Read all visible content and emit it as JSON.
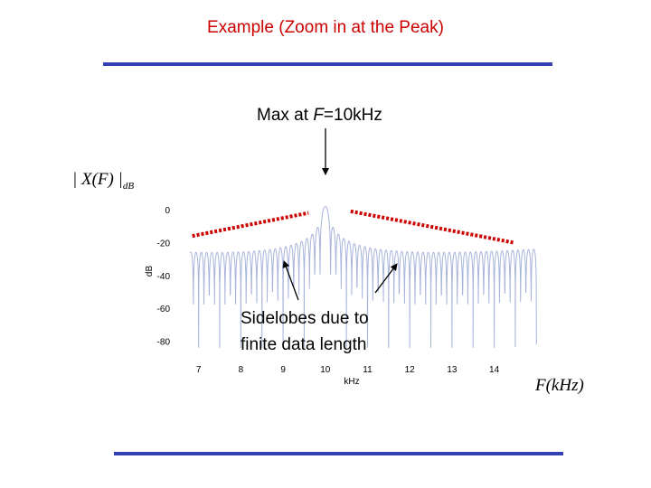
{
  "slide": {
    "title": "Example (Zoom in at the Peak)",
    "max_annotation_prefix": "Max at ",
    "max_annotation_var": "F",
    "max_annotation_suffix": "=10kHz",
    "sidelobe_line1": "Sidelobes due to",
    "sidelobe_line2": "finite data length",
    "ylabel_math": "| X(F) |",
    "ylabel_math_sub": "dB",
    "xlabel_math_var": "F",
    "xlabel_math_unit": "(kHz)"
  },
  "colors": {
    "title": "#cc0000",
    "rule": "#3341b3",
    "spectrum": "#a8b4dc",
    "envelope": "#cc0000"
  },
  "chart_data": {
    "type": "line",
    "xlabel": "kHz",
    "ylabel": "dB",
    "xlim": [
      6.6,
      15.0
    ],
    "ylim": [
      -90,
      8
    ],
    "x_ticks": [
      7,
      8,
      9,
      10,
      11,
      12,
      13,
      14
    ],
    "y_ticks": [
      0,
      -20,
      -40,
      -60,
      -80
    ],
    "peak": {
      "x": 10,
      "y": 2
    },
    "sidelobe_spacing_khz": 0.125,
    "envelope_left": [
      [
        6.85,
        -16
      ],
      [
        9.6,
        -2
      ]
    ],
    "envelope_right": [
      [
        10.6,
        -1
      ],
      [
        14.45,
        -20
      ]
    ]
  }
}
